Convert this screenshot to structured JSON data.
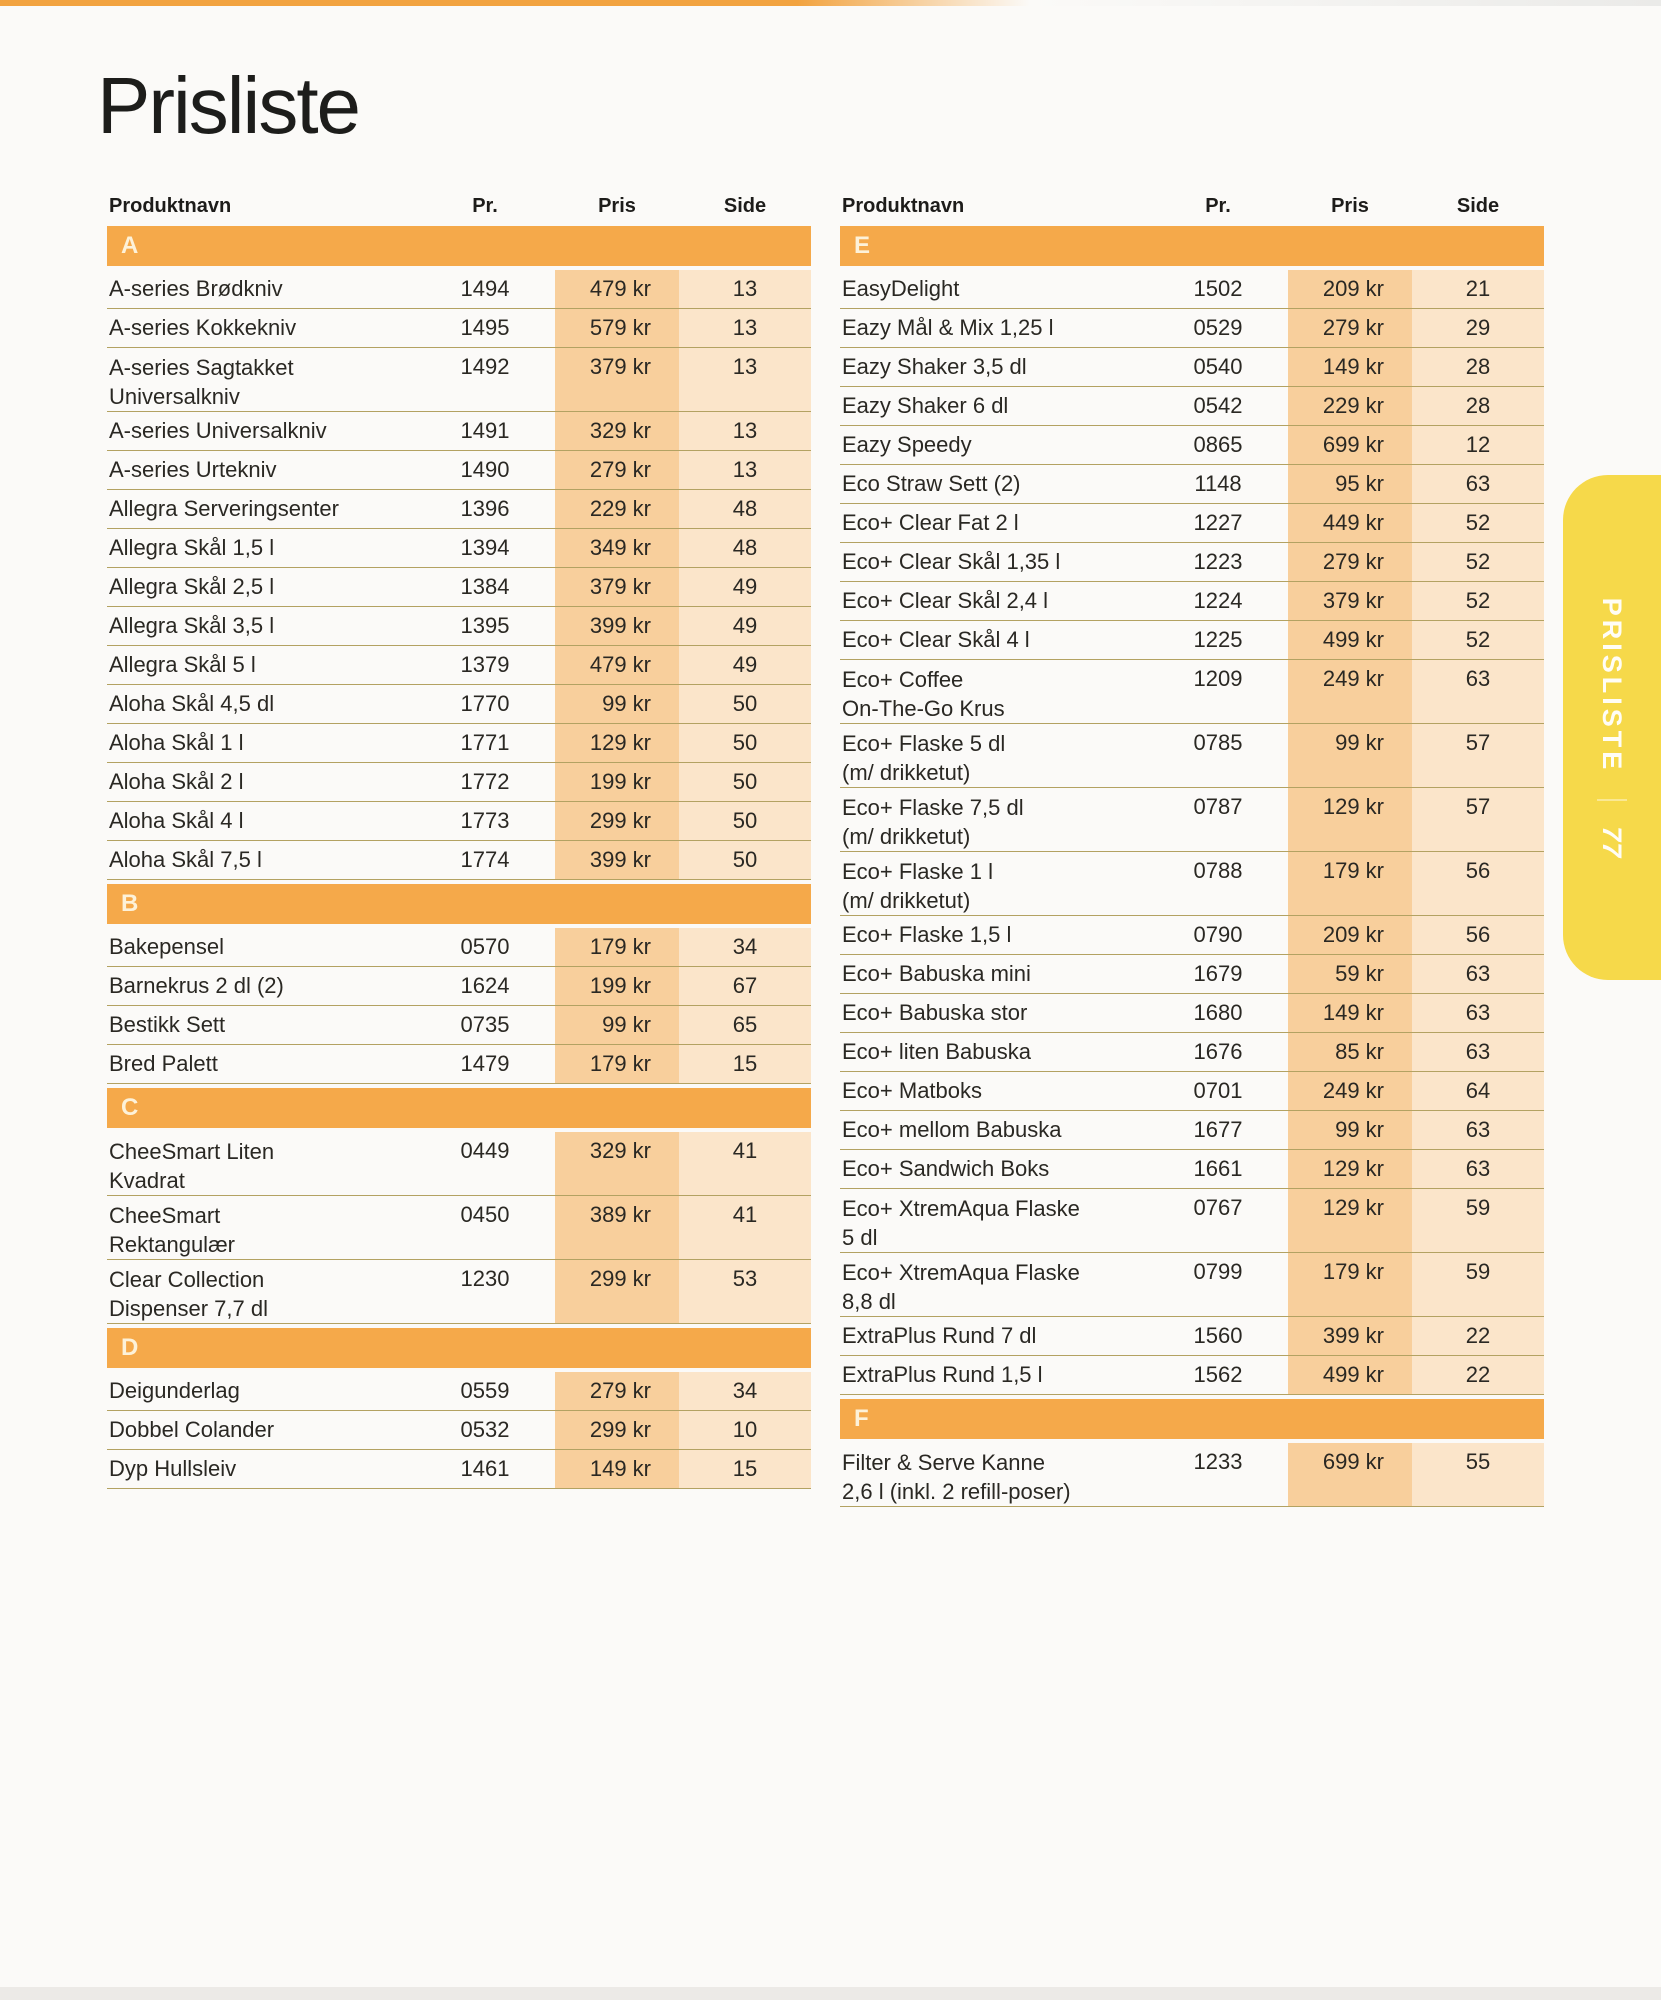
{
  "page": {
    "title": "Prisliste",
    "tab": {
      "label": "PRISLISTE",
      "page_number": "77"
    }
  },
  "columns": {
    "name": "Produktnavn",
    "pr": "Pr.",
    "pris": "Pris",
    "side": "Side"
  },
  "colors": {
    "accent_orange": "#f5a94a",
    "price_band": "#f8cf9c",
    "side_band": "#fbe5ca",
    "tab_yellow": "#f6d94a",
    "separator_line": "#b3a262"
  },
  "tables": [
    {
      "sections": [
        {
          "letter": "A",
          "rows": [
            {
              "name": "A-series Brødkniv",
              "pr": "1494",
              "pris": "479 kr",
              "side": "13"
            },
            {
              "name": "A-series Kokkekniv",
              "pr": "1495",
              "pris": "579 kr",
              "side": "13"
            },
            {
              "name": "A-series Sagtakket\nUniversalkniv",
              "pr": "1492",
              "pris": "379 kr",
              "side": "13"
            },
            {
              "name": "A-series Universalkniv",
              "pr": "1491",
              "pris": "329 kr",
              "side": "13"
            },
            {
              "name": "A-series Urtekniv",
              "pr": "1490",
              "pris": "279 kr",
              "side": "13"
            },
            {
              "name": "Allegra Serveringsenter",
              "pr": "1396",
              "pris": "229 kr",
              "side": "48"
            },
            {
              "name": "Allegra Skål 1,5 l",
              "pr": "1394",
              "pris": "349 kr",
              "side": "48"
            },
            {
              "name": "Allegra Skål 2,5 l",
              "pr": "1384",
              "pris": "379 kr",
              "side": "49"
            },
            {
              "name": "Allegra Skål 3,5 l",
              "pr": "1395",
              "pris": "399 kr",
              "side": "49"
            },
            {
              "name": "Allegra Skål 5 l",
              "pr": "1379",
              "pris": "479 kr",
              "side": "49"
            },
            {
              "name": "Aloha Skål 4,5 dl",
              "pr": "1770",
              "pris": "99 kr",
              "side": "50"
            },
            {
              "name": "Aloha Skål 1 l",
              "pr": "1771",
              "pris": "129 kr",
              "side": "50"
            },
            {
              "name": "Aloha Skål 2 l",
              "pr": "1772",
              "pris": "199 kr",
              "side": "50"
            },
            {
              "name": "Aloha Skål 4 l",
              "pr": "1773",
              "pris": "299 kr",
              "side": "50"
            },
            {
              "name": "Aloha Skål 7,5 l",
              "pr": "1774",
              "pris": "399 kr",
              "side": "50"
            }
          ]
        },
        {
          "letter": "B",
          "rows": [
            {
              "name": "Bakepensel",
              "pr": "0570",
              "pris": "179 kr",
              "side": "34"
            },
            {
              "name": "Barnekrus 2 dl (2)",
              "pr": "1624",
              "pris": "199 kr",
              "side": "67"
            },
            {
              "name": "Bestikk Sett",
              "pr": "0735",
              "pris": "99 kr",
              "side": "65"
            },
            {
              "name": "Bred Palett",
              "pr": "1479",
              "pris": "179 kr",
              "side": "15"
            }
          ]
        },
        {
          "letter": "C",
          "rows": [
            {
              "name": "CheeSmart Liten\nKvadrat",
              "pr": "0449",
              "pris": "329 kr",
              "side": "41"
            },
            {
              "name": "CheeSmart\nRektangulær",
              "pr": "0450",
              "pris": "389 kr",
              "side": "41"
            },
            {
              "name": "Clear Collection\nDispenser 7,7 dl",
              "pr": "1230",
              "pris": "299 kr",
              "side": "53"
            }
          ]
        },
        {
          "letter": "D",
          "rows": [
            {
              "name": "Deigunderlag",
              "pr": "0559",
              "pris": "279 kr",
              "side": "34"
            },
            {
              "name": "Dobbel Colander",
              "pr": "0532",
              "pris": "299 kr",
              "side": "10"
            },
            {
              "name": "Dyp Hullsleiv",
              "pr": "1461",
              "pris": "149 kr",
              "side": "15"
            }
          ]
        }
      ]
    },
    {
      "sections": [
        {
          "letter": "E",
          "rows": [
            {
              "name": "EasyDelight",
              "pr": "1502",
              "pris": "209 kr",
              "side": "21"
            },
            {
              "name": "Eazy Mål & Mix 1,25 l",
              "pr": "0529",
              "pris": "279 kr",
              "side": "29"
            },
            {
              "name": "Eazy Shaker 3,5 dl",
              "pr": "0540",
              "pris": "149 kr",
              "side": "28"
            },
            {
              "name": "Eazy Shaker 6 dl",
              "pr": "0542",
              "pris": "229 kr",
              "side": "28"
            },
            {
              "name": "Eazy Speedy",
              "pr": "0865",
              "pris": "699 kr",
              "side": "12"
            },
            {
              "name": "Eco Straw Sett (2)",
              "pr": "1148",
              "pris": "95 kr",
              "side": "63"
            },
            {
              "name": "Eco+ Clear Fat 2 l",
              "pr": "1227",
              "pris": "449 kr",
              "side": "52"
            },
            {
              "name": "Eco+ Clear Skål 1,35 l",
              "pr": "1223",
              "pris": "279 kr",
              "side": "52"
            },
            {
              "name": "Eco+ Clear Skål 2,4 l",
              "pr": "1224",
              "pris": "379 kr",
              "side": "52"
            },
            {
              "name": "Eco+ Clear Skål 4 l",
              "pr": "1225",
              "pris": "499 kr",
              "side": "52"
            },
            {
              "name": "Eco+ Coffee\nOn-The-Go Krus",
              "pr": "1209",
              "pris": "249 kr",
              "side": "63"
            },
            {
              "name": "Eco+ Flaske 5 dl\n(m/ drikketut)",
              "pr": "0785",
              "pris": "99 kr",
              "side": "57"
            },
            {
              "name": "Eco+ Flaske 7,5 dl\n(m/ drikketut)",
              "pr": "0787",
              "pris": "129 kr",
              "side": "57"
            },
            {
              "name": "Eco+ Flaske 1 l\n(m/ drikketut)",
              "pr": "0788",
              "pris": "179 kr",
              "side": "56"
            },
            {
              "name": "Eco+ Flaske 1,5 l",
              "pr": "0790",
              "pris": "209 kr",
              "side": "56"
            },
            {
              "name": "Eco+ Babuska mini",
              "pr": "1679",
              "pris": "59 kr",
              "side": "63"
            },
            {
              "name": "Eco+ Babuska stor",
              "pr": "1680",
              "pris": "149 kr",
              "side": "63"
            },
            {
              "name": "Eco+ liten Babuska",
              "pr": "1676",
              "pris": "85 kr",
              "side": "63"
            },
            {
              "name": "Eco+ Matboks",
              "pr": "0701",
              "pris": "249 kr",
              "side": "64"
            },
            {
              "name": "Eco+ mellom Babuska",
              "pr": "1677",
              "pris": "99 kr",
              "side": "63"
            },
            {
              "name": "Eco+ Sandwich Boks",
              "pr": "1661",
              "pris": "129 kr",
              "side": "63"
            },
            {
              "name": "Eco+ XtremAqua Flaske\n5 dl",
              "pr": "0767",
              "pris": "129 kr",
              "side": "59"
            },
            {
              "name": "Eco+ XtremAqua Flaske\n8,8 dl",
              "pr": "0799",
              "pris": "179 kr",
              "side": "59"
            },
            {
              "name": "ExtraPlus Rund 7 dl",
              "pr": "1560",
              "pris": "399 kr",
              "side": "22"
            },
            {
              "name": "ExtraPlus Rund 1,5 l",
              "pr": "1562",
              "pris": "499 kr",
              "side": "22"
            }
          ]
        },
        {
          "letter": "F",
          "rows": [
            {
              "name": "Filter & Serve Kanne\n2,6 l (inkl. 2 refill-poser)",
              "pr": "1233",
              "pris": "699 kr",
              "side": "55"
            }
          ]
        }
      ]
    }
  ]
}
